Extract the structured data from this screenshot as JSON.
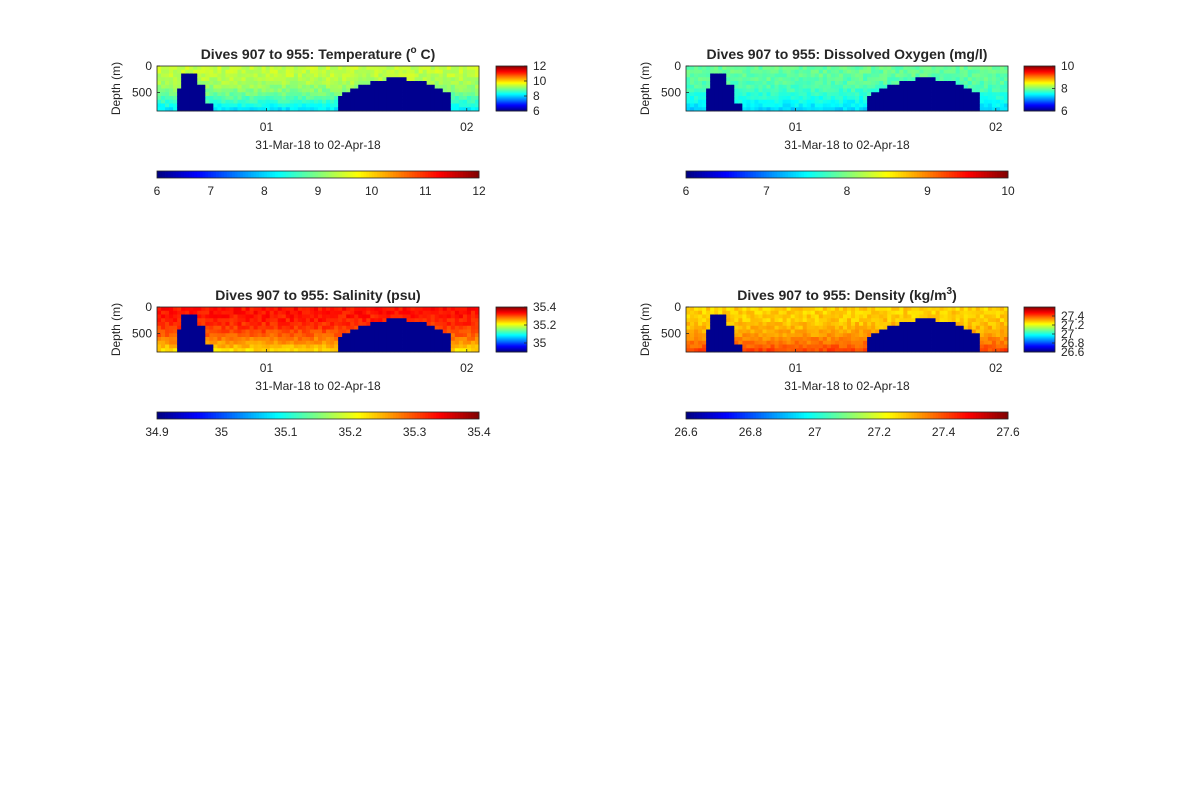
{
  "chart_data": [
    {
      "type": "heatmap",
      "title": "Dives 907 to 955: Temperature (",
      "title_sup": "o",
      "title_end": " C)",
      "xlabel": "31-Mar-18 to 02-Apr-18",
      "ylabel": "Depth (m)",
      "xticks": [
        "01",
        "02"
      ],
      "yticks": [
        "0",
        "500"
      ],
      "ylim": [
        0,
        850
      ],
      "clim": [
        6,
        12
      ],
      "side_colorbar_ticks": [
        "12",
        "10",
        "8",
        "6"
      ],
      "bottom_colorbar_ticks": [
        "6",
        "7",
        "8",
        "9",
        "10",
        "11",
        "12"
      ],
      "surface_value": 9.4,
      "bottom_value": 8.0,
      "colormap": "jet",
      "no_data_color": "#00008f"
    },
    {
      "type": "heatmap",
      "title": "Dives 907 to 955: Dissolved Oxygen (mg/l)",
      "title_sup": "",
      "title_end": "",
      "xlabel": "31-Mar-18 to 02-Apr-18",
      "ylabel": "Depth (m)",
      "xticks": [
        "01",
        "02"
      ],
      "yticks": [
        "0",
        "500"
      ],
      "ylim": [
        0,
        850
      ],
      "clim": [
        6,
        10
      ],
      "side_colorbar_ticks": [
        "10",
        "8",
        "6"
      ],
      "bottom_colorbar_ticks": [
        "6",
        "7",
        "8",
        "9",
        "10"
      ],
      "surface_value": 7.9,
      "bottom_value": 7.3,
      "colormap": "jet",
      "no_data_color": "#00008f"
    },
    {
      "type": "heatmap",
      "title": "Dives 907 to 955: Salinity (psu)",
      "title_sup": "",
      "title_end": "",
      "xlabel": "31-Mar-18 to 02-Apr-18",
      "ylabel": "Depth (m)",
      "xticks": [
        "01",
        "02"
      ],
      "yticks": [
        "0",
        "500"
      ],
      "ylim": [
        0,
        850
      ],
      "clim": [
        34.9,
        35.4
      ],
      "side_colorbar_ticks": [
        "35.4",
        "35.2",
        "35"
      ],
      "bottom_colorbar_ticks": [
        "34.9",
        "35",
        "35.1",
        "35.2",
        "35.3",
        "35.4"
      ],
      "surface_value": 35.33,
      "bottom_value": 35.22,
      "colormap": "jet",
      "no_data_color": "#00008f"
    },
    {
      "type": "heatmap",
      "title": "Dives 907 to 955: Density (kg/m",
      "title_sup": "3",
      "title_end": ")",
      "xlabel": "31-Mar-18 to 02-Apr-18",
      "ylabel": "Depth (m)",
      "xticks": [
        "01",
        "02"
      ],
      "yticks": [
        "0",
        "500"
      ],
      "ylim": [
        0,
        850
      ],
      "clim": [
        26.6,
        27.6
      ],
      "side_colorbar_ticks": [
        "27.4",
        "27.2",
        "27",
        "26.8",
        "26.6"
      ],
      "bottom_colorbar_ticks": [
        "26.6",
        "26.8",
        "27",
        "27.2",
        "27.4",
        "27.6"
      ],
      "surface_value": 27.27,
      "bottom_value": 27.42,
      "colormap": "jet",
      "no_data_color": "#00008f"
    }
  ]
}
